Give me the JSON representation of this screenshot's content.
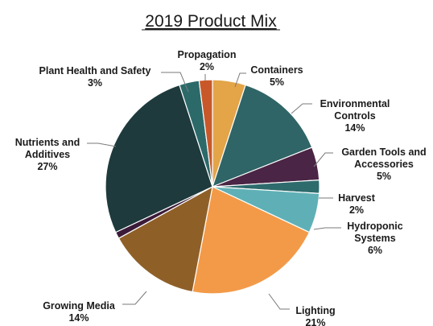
{
  "chart_data": {
    "type": "pie",
    "title": "2019 Product Mix",
    "slices": [
      {
        "name": "Containers",
        "label_lines": [
          "Containers"
        ],
        "value": 5,
        "value_label": "5%",
        "color": "#E3A548"
      },
      {
        "name": "Environmental Controls",
        "label_lines": [
          "Environmental",
          "Controls"
        ],
        "value": 14,
        "value_label": "14%",
        "color": "#2F6566"
      },
      {
        "name": "Garden Tools and Accessories",
        "label_lines": [
          "Garden Tools and",
          "Accessories"
        ],
        "value": 5,
        "value_label": "5%",
        "color": "#4A2545"
      },
      {
        "name": "Harvest",
        "label_lines": [
          "Harvest"
        ],
        "value": 2,
        "value_label": "2%",
        "color": "#2E6B6D"
      },
      {
        "name": "Hydroponic Systems",
        "label_lines": [
          "Hydroponic",
          "Systems"
        ],
        "value": 6,
        "value_label": "6%",
        "color": "#5FB0B6"
      },
      {
        "name": "Lighting",
        "label_lines": [
          "Lighting"
        ],
        "value": 21,
        "value_label": "21%",
        "color": "#F39A48"
      },
      {
        "name": "Growing Media",
        "label_lines": [
          "Growing Media"
        ],
        "value": 14,
        "value_label": "14%",
        "color": "#8E6028"
      },
      {
        "name": "Other",
        "label_lines": [],
        "value": 1,
        "value_label": "",
        "color": "#3B1B39"
      },
      {
        "name": "Nutrients and Additives",
        "label_lines": [
          "Nutrients and",
          "Additives"
        ],
        "value": 27,
        "value_label": "27%",
        "color": "#1E3A3C"
      },
      {
        "name": "Plant Health and Safety",
        "label_lines": [
          "Plant Health and Safety"
        ],
        "value": 3,
        "value_label": "3%",
        "color": "#2C6A6A"
      },
      {
        "name": "Propagation",
        "label_lines": [
          "Propagation"
        ],
        "value": 2,
        "value_label": "2%",
        "color": "#C8582A"
      }
    ],
    "legend": "none"
  }
}
